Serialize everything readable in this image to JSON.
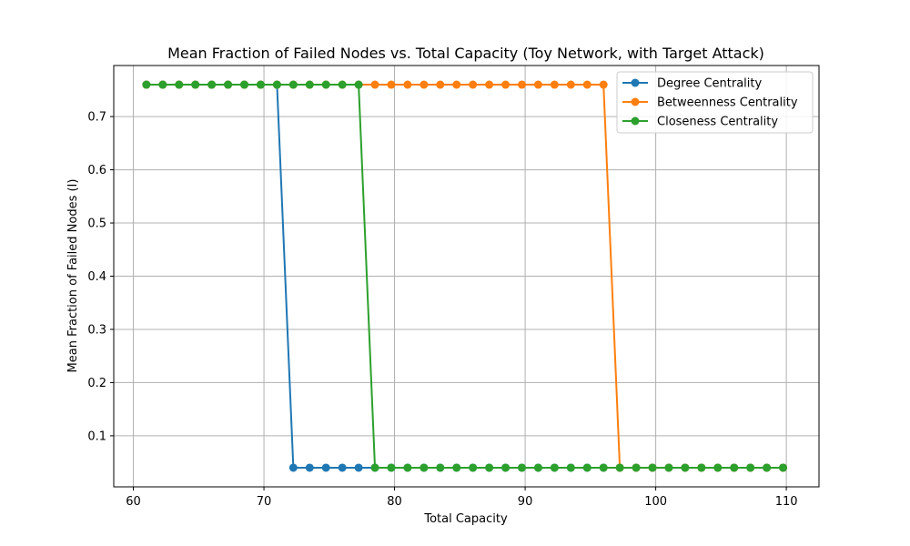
{
  "chart_data": {
    "type": "line",
    "title": "Mean Fraction of Failed Nodes vs. Total Capacity (Toy Network, with Target Attack)",
    "xlabel": "Total Capacity",
    "ylabel": "Mean Fraction of Failed Nodes (I)",
    "xlim": [
      58.5,
      112.5
    ],
    "ylim": [
      0.004,
      0.796
    ],
    "xticks": [
      60,
      70,
      80,
      90,
      100,
      110
    ],
    "yticks": [
      0.1,
      0.2,
      0.3,
      0.4,
      0.5,
      0.6,
      0.7
    ],
    "grid": true,
    "legend_position": "top-right",
    "x": [
      61.0,
      62.25,
      63.5,
      64.75,
      66.0,
      67.25,
      68.5,
      69.75,
      71.0,
      72.25,
      73.5,
      74.75,
      76.0,
      77.25,
      78.5,
      79.75,
      81.0,
      82.25,
      83.5,
      84.75,
      86.0,
      87.25,
      88.5,
      89.75,
      91.0,
      92.25,
      93.5,
      94.75,
      96.0,
      97.25,
      98.5,
      99.75,
      101.0,
      102.25,
      103.5,
      104.75,
      106.0,
      107.25,
      108.5,
      109.75
    ],
    "series": [
      {
        "name": "Degree Centrality",
        "color": "#1f77b4",
        "values": [
          0.76,
          0.76,
          0.76,
          0.76,
          0.76,
          0.76,
          0.76,
          0.76,
          0.76,
          0.04,
          0.04,
          0.04,
          0.04,
          0.04,
          0.04,
          0.04,
          0.04,
          0.04,
          0.04,
          0.04,
          0.04,
          0.04,
          0.04,
          0.04,
          0.04,
          0.04,
          0.04,
          0.04,
          0.04,
          0.04,
          0.04,
          0.04,
          0.04,
          0.04,
          0.04,
          0.04,
          0.04,
          0.04,
          0.04,
          0.04
        ]
      },
      {
        "name": "Betweenness Centrality",
        "color": "#ff7f0e",
        "values": [
          0.76,
          0.76,
          0.76,
          0.76,
          0.76,
          0.76,
          0.76,
          0.76,
          0.76,
          0.76,
          0.76,
          0.76,
          0.76,
          0.76,
          0.76,
          0.76,
          0.76,
          0.76,
          0.76,
          0.76,
          0.76,
          0.76,
          0.76,
          0.76,
          0.76,
          0.76,
          0.76,
          0.76,
          0.76,
          0.04,
          0.04,
          0.04,
          0.04,
          0.04,
          0.04,
          0.04,
          0.04,
          0.04,
          0.04,
          0.04
        ]
      },
      {
        "name": "Closeness Centrality",
        "color": "#2ca02c",
        "values": [
          0.76,
          0.76,
          0.76,
          0.76,
          0.76,
          0.76,
          0.76,
          0.76,
          0.76,
          0.76,
          0.76,
          0.76,
          0.76,
          0.76,
          0.04,
          0.04,
          0.04,
          0.04,
          0.04,
          0.04,
          0.04,
          0.04,
          0.04,
          0.04,
          0.04,
          0.04,
          0.04,
          0.04,
          0.04,
          0.04,
          0.04,
          0.04,
          0.04,
          0.04,
          0.04,
          0.04,
          0.04,
          0.04,
          0.04,
          0.04
        ]
      }
    ]
  }
}
